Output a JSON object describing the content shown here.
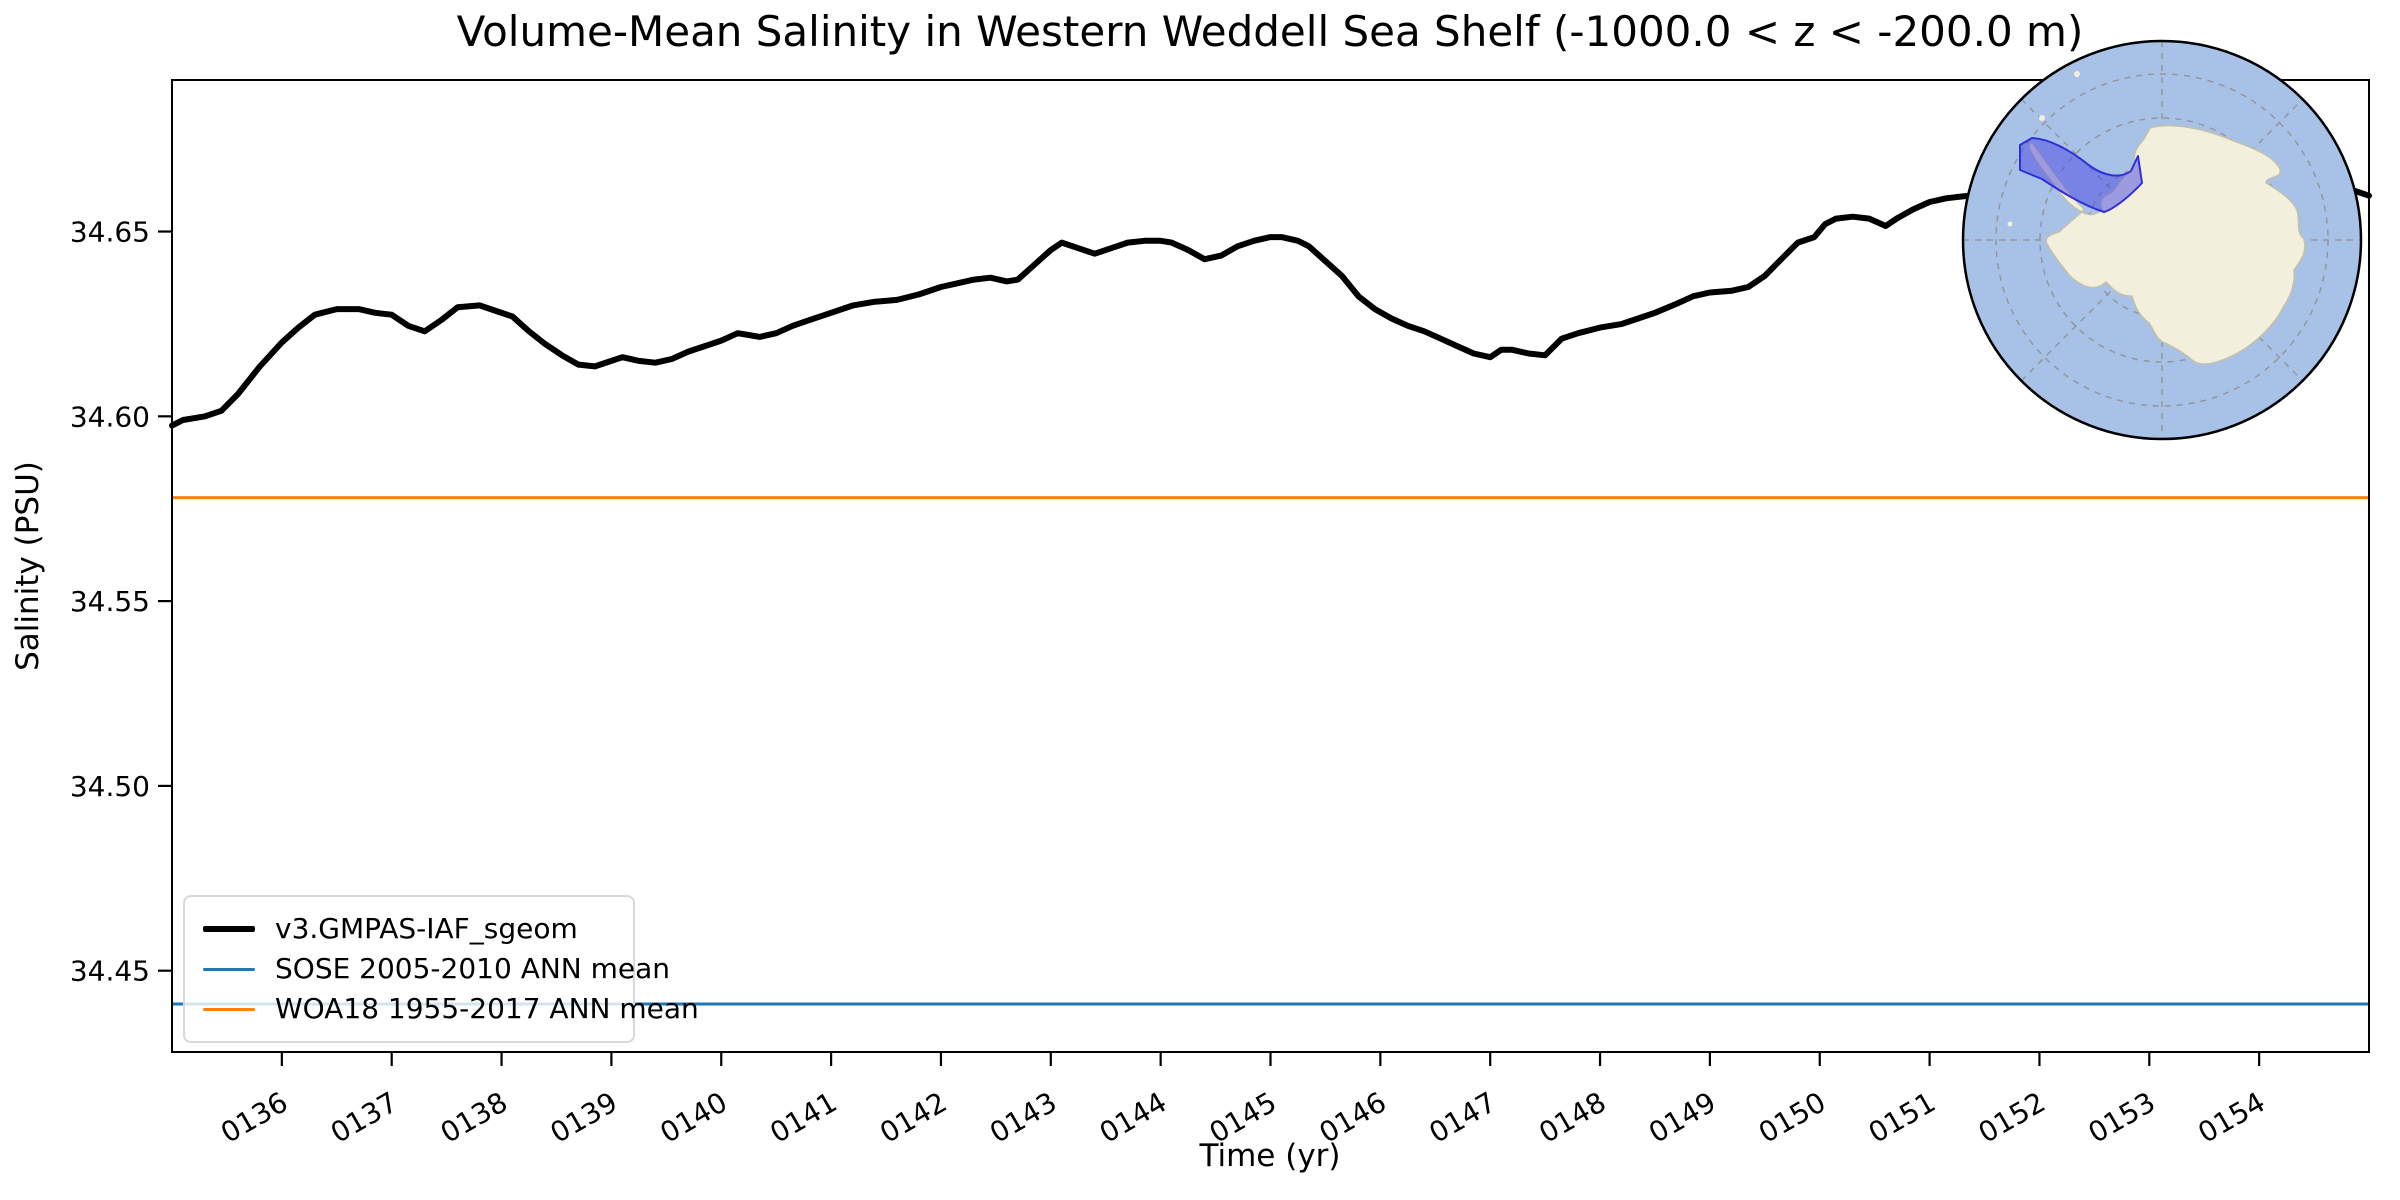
{
  "chart_data": {
    "type": "line",
    "title": "Volume-Mean Salinity in Western Weddell Sea Shelf (-1000.0 < z < -200.0 m)",
    "xlabel": "Time (yr)",
    "ylabel": "Salinity (PSU)",
    "xlim": [
      135,
      155
    ],
    "ylim": [
      34.428,
      34.691
    ],
    "grid": false,
    "legend_position": "lower left",
    "x_ticks": {
      "values": [
        136,
        137,
        138,
        139,
        140,
        141,
        142,
        143,
        144,
        145,
        146,
        147,
        148,
        149,
        150,
        151,
        152,
        153,
        154
      ],
      "labels": [
        "0136",
        "0137",
        "0138",
        "0139",
        "0140",
        "0141",
        "0142",
        "0143",
        "0144",
        "0145",
        "0146",
        "0147",
        "0148",
        "0149",
        "0150",
        "0151",
        "0152",
        "0153",
        "0154"
      ],
      "rotation_deg": -30
    },
    "y_ticks": {
      "values": [
        34.45,
        34.5,
        34.55,
        34.6,
        34.65
      ],
      "labels": [
        "34.45",
        "34.50",
        "34.55",
        "34.60",
        "34.65"
      ]
    },
    "series": [
      {
        "name": "v3.GMPAS-IAF_sgeom",
        "color": "#000000",
        "width": 6,
        "x": [
          135.0,
          135.1,
          135.2,
          135.3,
          135.45,
          135.6,
          135.8,
          136.0,
          136.15,
          136.3,
          136.5,
          136.7,
          136.85,
          137.0,
          137.15,
          137.3,
          137.45,
          137.6,
          137.8,
          137.95,
          138.1,
          138.25,
          138.4,
          138.55,
          138.7,
          138.85,
          139.0,
          139.1,
          139.25,
          139.4,
          139.55,
          139.7,
          139.85,
          140.0,
          140.15,
          140.25,
          140.35,
          140.5,
          140.65,
          140.8,
          141.0,
          141.2,
          141.4,
          141.6,
          141.8,
          142.0,
          142.15,
          142.3,
          142.45,
          142.6,
          142.7,
          142.85,
          143.0,
          143.1,
          143.25,
          143.4,
          143.55,
          143.7,
          143.85,
          144.0,
          144.1,
          144.25,
          144.4,
          144.55,
          144.7,
          144.85,
          145.0,
          145.1,
          145.25,
          145.35,
          145.5,
          145.65,
          145.8,
          145.95,
          146.1,
          146.25,
          146.4,
          146.55,
          146.7,
          146.85,
          147.0,
          147.1,
          147.2,
          147.35,
          147.5,
          147.65,
          147.8,
          148.0,
          148.2,
          148.35,
          148.5,
          148.7,
          148.85,
          149.0,
          149.2,
          149.35,
          149.5,
          149.65,
          149.8,
          149.95,
          150.05,
          150.15,
          150.3,
          150.45,
          150.6,
          150.7,
          150.85,
          151.0,
          151.15,
          151.3,
          151.5,
          151.8,
          152.2,
          152.6,
          153.0,
          153.4,
          153.8,
          154.2,
          154.6,
          154.82,
          154.92,
          155.0
        ],
        "y": [
          34.5975,
          34.599,
          34.5995,
          34.6,
          34.6015,
          34.606,
          34.6135,
          34.62,
          34.624,
          34.6275,
          34.629,
          34.629,
          34.628,
          34.6275,
          34.6245,
          34.623,
          34.626,
          34.6295,
          34.63,
          34.6285,
          34.627,
          34.623,
          34.6195,
          34.6165,
          34.614,
          34.6135,
          34.615,
          34.616,
          34.615,
          34.6145,
          34.6155,
          34.6175,
          34.619,
          34.6205,
          34.6225,
          34.622,
          34.6215,
          34.6225,
          34.6245,
          34.626,
          34.628,
          34.63,
          34.631,
          34.6315,
          34.633,
          34.635,
          34.636,
          34.637,
          34.6375,
          34.6365,
          34.637,
          34.641,
          34.645,
          34.647,
          34.6455,
          34.644,
          34.6455,
          34.647,
          34.6475,
          34.6475,
          34.647,
          34.645,
          34.6425,
          34.6435,
          34.646,
          34.6475,
          34.6485,
          34.6485,
          34.6475,
          34.646,
          34.642,
          34.638,
          34.6325,
          34.629,
          34.6265,
          34.6245,
          34.623,
          34.621,
          34.619,
          34.617,
          34.616,
          34.618,
          34.618,
          34.617,
          34.6165,
          34.621,
          34.6225,
          34.624,
          34.625,
          34.6265,
          34.628,
          34.6305,
          34.6325,
          34.6335,
          34.634,
          34.635,
          34.638,
          34.6425,
          34.647,
          34.6485,
          34.652,
          34.6535,
          34.654,
          34.6535,
          34.6515,
          34.6535,
          34.656,
          34.658,
          34.659,
          34.6595,
          34.66,
          34.661,
          34.6625,
          34.663,
          34.6625,
          34.662,
          34.6615,
          34.6615,
          34.6615,
          34.6615,
          34.6605,
          34.6597
        ]
      },
      {
        "name": "SOSE 2005-2010 ANN mean",
        "color": "#1f77b4",
        "width": 3,
        "value": 34.441
      },
      {
        "name": "WOA18 1955-2017 ANN mean",
        "color": "#ff7f0e",
        "width": 3,
        "value": 34.578
      }
    ],
    "inset_map": {
      "description": "South polar stereographic map of Antarctica with Western Weddell Sea shelf region highlighted",
      "ocean_color": "#a8c1e6",
      "land_color": "#f2efdc",
      "coast_color": "#c4c0a8",
      "graticule_color": "#8f8f8f",
      "highlight_fill": "rgba(72,72,228,0.5)",
      "highlight_stroke": "#3030d8",
      "border_color": "#000000"
    }
  },
  "legend": {
    "items": [
      {
        "label": "v3.GMPAS-IAF_sgeom",
        "color": "#000000",
        "line_width": 6
      },
      {
        "label": "SOSE 2005-2010 ANN mean",
        "color": "#1f77b4",
        "line_width": 3
      },
      {
        "label": "WOA18 1955-2017 ANN mean",
        "color": "#ff7f0e",
        "line_width": 3
      }
    ]
  }
}
